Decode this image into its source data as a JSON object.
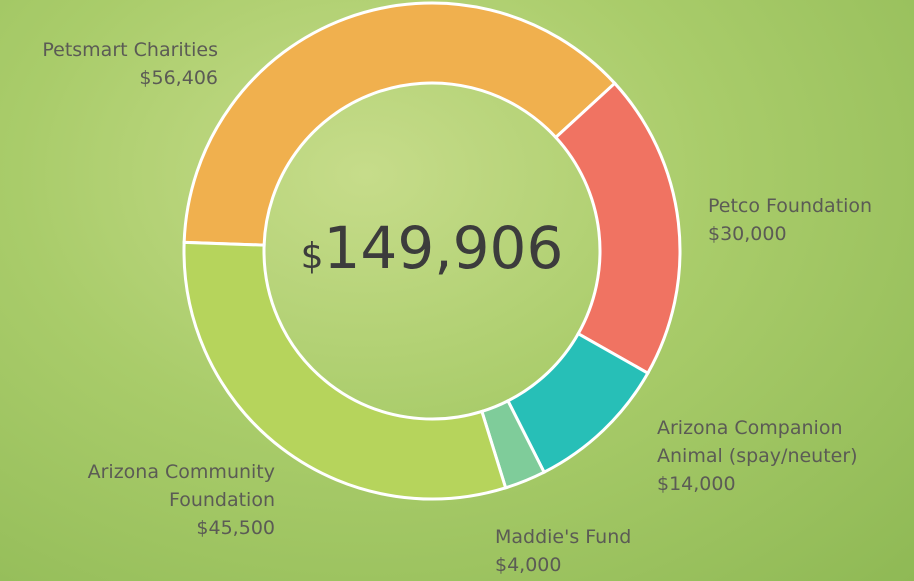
{
  "chart_data": {
    "type": "donut",
    "total_label": {
      "currency": "$",
      "amount": "149,906"
    },
    "categories": [
      "Petsmart Charities",
      "Petco Foundation",
      "Arizona Companion Animal (spay/neuter)",
      "Maddie's Fund",
      "Arizona Community Foundation"
    ],
    "values": [
      56406,
      30000,
      14000,
      4000,
      45500
    ],
    "value_labels": [
      "$56,406",
      "$30,000",
      "$14,000",
      "$4,000",
      "$45,500"
    ],
    "colors": [
      "#f0b04e",
      "#f07362",
      "#27bfb7",
      "#7fcc9a",
      "#b6d45c"
    ]
  }
}
